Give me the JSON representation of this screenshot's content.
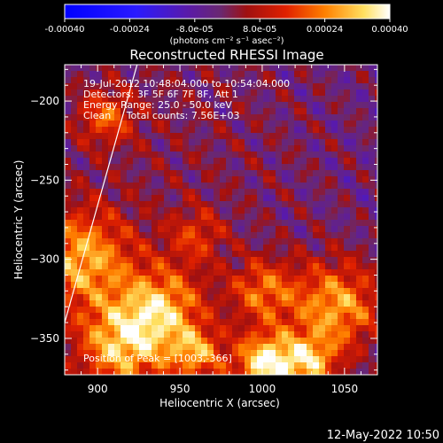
{
  "chart_data": {
    "type": "heatmap",
    "title": "Reconstructed RHESSI Image",
    "xlabel": "Heliocentric X (arcsec)",
    "ylabel": "Heliocentric Y (arcsec)",
    "xlim": [
      880,
      1070
    ],
    "ylim": [
      -373,
      -177
    ],
    "xticks": [
      900,
      950,
      1000,
      1050
    ],
    "yticks": [
      -200,
      -250,
      -300,
      -350
    ],
    "colorbar": {
      "range": [
        -0.0004,
        0.0004
      ],
      "tick_values": [
        -0.0004,
        -0.00024,
        -8e-05,
        8e-05,
        0.00024,
        0.0004
      ],
      "tick_labels": [
        "-0.00040",
        "-0.00024",
        "-8.0e-05",
        "8.0e-05",
        "0.00024",
        "0.00040"
      ],
      "units_label": "(photons cm⁻² s⁻¹ asec⁻²)"
    },
    "annotations": [
      "19-Jul-2012 10:48:04.000 to 10:54:04.000",
      "Detectors: 3F 5F 6F 7F 8F, Att 1",
      "Energy Range: 25.0 - 50.0 keV",
      "Clean     Total counts: 7.56E+03",
      "Position of Peak = [1003,-366]"
    ],
    "peak": {
      "x": 1003,
      "y": -366
    },
    "limb_line": [
      [
        880,
        -340
      ],
      [
        924,
        -177
      ]
    ],
    "intensity_regions": [
      {
        "x": 950,
        "y": -230,
        "sigma": 80,
        "value": 5e-05
      },
      {
        "x": 890,
        "y": -300,
        "sigma": 22,
        "value": 0.0003
      },
      {
        "x": 915,
        "y": -355,
        "sigma": 20,
        "value": 0.00033
      },
      {
        "x": 940,
        "y": -330,
        "sigma": 18,
        "value": 0.00028
      },
      {
        "x": 1003,
        "y": -366,
        "sigma": 14,
        "value": 0.0004
      },
      {
        "x": 1045,
        "y": -330,
        "sigma": 20,
        "value": 0.0003
      },
      {
        "x": 1000,
        "y": -320,
        "sigma": 14,
        "value": 0.00022
      },
      {
        "x": 960,
        "y": -285,
        "sigma": 12,
        "value": 0.00015
      },
      {
        "x": 1030,
        "y": -365,
        "sigma": 12,
        "value": 0.00026
      },
      {
        "x": 905,
        "y": -210,
        "sigma": 12,
        "value": 0.0002
      },
      {
        "x": 960,
        "y": -360,
        "sigma": 12,
        "value": 0.00026
      }
    ]
  },
  "footer": {
    "date": "12-May-2022 10:50"
  }
}
